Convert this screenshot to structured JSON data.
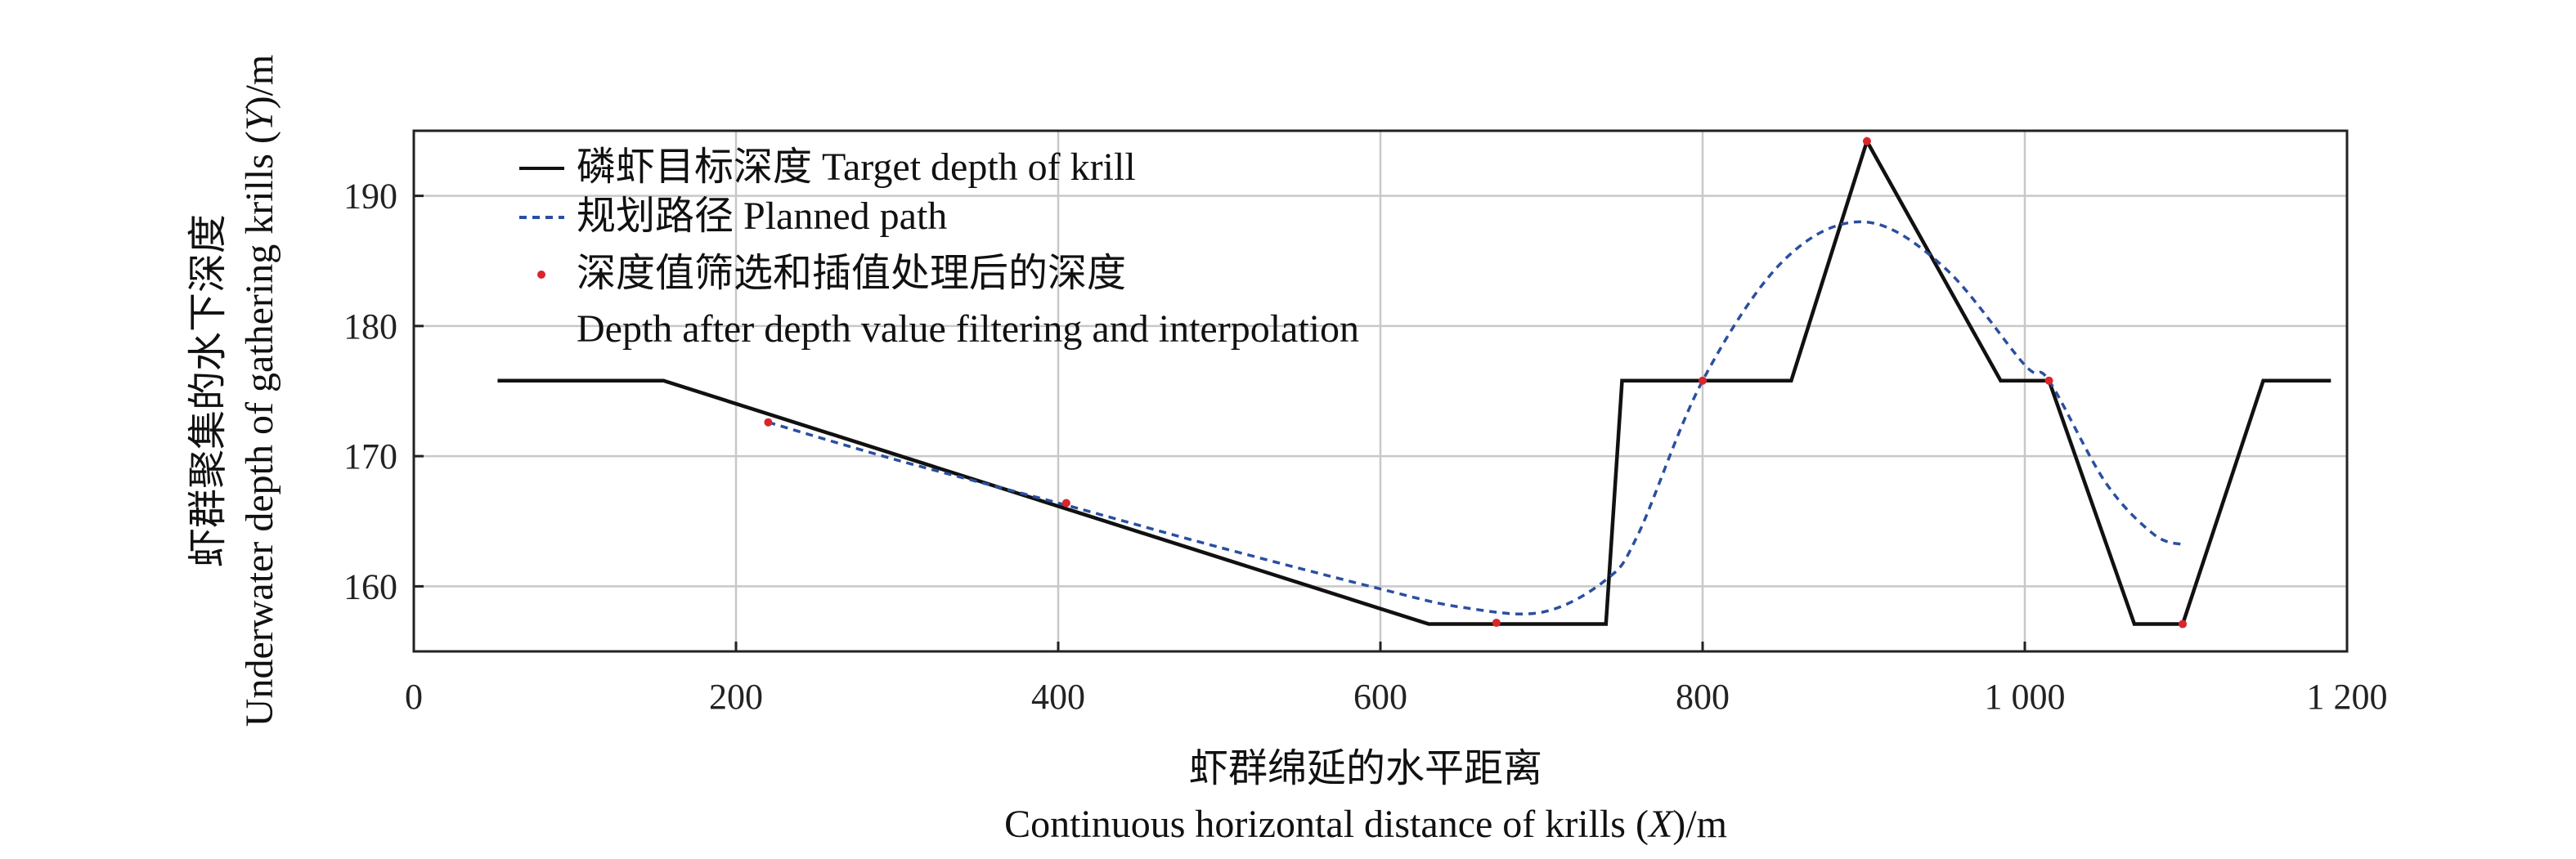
{
  "chart_data": {
    "type": "line",
    "xlim": [
      0,
      1200
    ],
    "ylim": [
      155,
      195
    ],
    "x_ticks": [
      0,
      200,
      400,
      600,
      800,
      1000,
      1200
    ],
    "x_tick_labels": [
      "0",
      "200",
      "400",
      "600",
      "800",
      "1 000",
      "1 200"
    ],
    "y_ticks": [
      160,
      170,
      180,
      190
    ],
    "y_tick_labels": [
      "160",
      "170",
      "180",
      "190"
    ],
    "xlabel_line1": "虾群绵延的水平距离",
    "xlabel_line2_pre": "Continuous horizontal distance of krills (",
    "xlabel_var": "X",
    "xlabel_line2_post": ")/m",
    "ylabel_line1": "虾群聚集的水下深度",
    "ylabel_line2_pre": "Underwater depth of gathering krills (",
    "ylabel_var": "Y",
    "ylabel_line2_post": ")/m",
    "grid": true,
    "legend_position": "top-left",
    "series": [
      {
        "name": "磷虾目标深度 Target depth of krill",
        "style": "solid",
        "color": "#111111",
        "x": [
          52,
          155,
          630,
          740,
          750,
          855,
          902,
          985,
          1015,
          1068,
          1098,
          1148,
          1190
        ],
        "y": [
          175.8,
          175.8,
          157.1,
          157.1,
          175.8,
          175.8,
          194.2,
          175.8,
          175.8,
          157.1,
          157.1,
          175.8,
          175.8
        ]
      },
      {
        "name": "规划路径 Planned path",
        "style": "dashed",
        "color": "#2a4fa0",
        "x": [
          220,
          300,
          400,
          500,
          600,
          650,
          700,
          740,
          760,
          800,
          850,
          900,
          950,
          1000,
          1015,
          1050,
          1080,
          1098
        ],
        "y": [
          172.6,
          169.7,
          166.4,
          163.0,
          159.8,
          158.4,
          158.0,
          160.5,
          164.0,
          175.8,
          185.0,
          188.0,
          184.5,
          177.0,
          175.8,
          168.0,
          164.0,
          163.2
        ]
      },
      {
        "name": "深度值筛选和插值处理后的深度",
        "name_line2": "Depth after depth value filtering and interpolation",
        "style": "points",
        "color": "#d9262c",
        "x": [
          220,
          405,
          672,
          800,
          902,
          1015,
          1098
        ],
        "y": [
          172.6,
          166.4,
          157.2,
          175.8,
          194.2,
          175.8,
          157.1
        ]
      }
    ]
  }
}
